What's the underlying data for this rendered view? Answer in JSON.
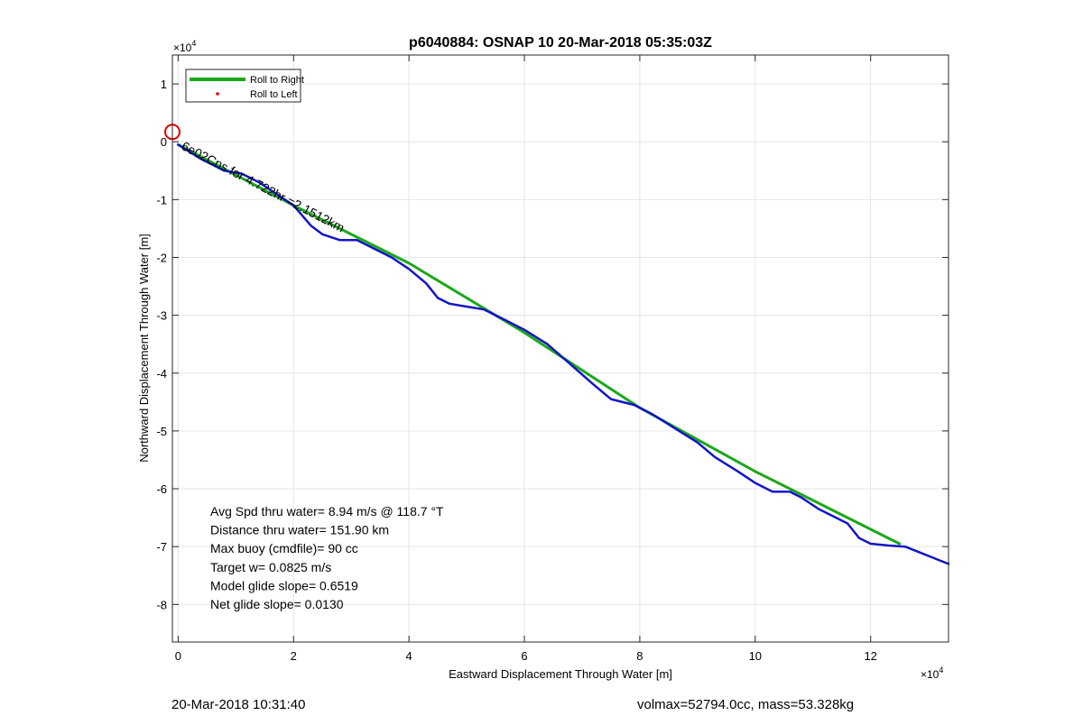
{
  "chart_data": {
    "type": "line",
    "title": "p6040884: OSNAP 10 20-Mar-2018 05:35:03Z",
    "xlabel": "Eastward Displacement Through Water [m]",
    "ylabel": "Northward Displacement Through Water [m]",
    "x_exponent": "×10",
    "y_exponent": "×10",
    "exponent_power": "4",
    "xlim": [
      -0.1,
      13.35
    ],
    "ylim": [
      -8.65,
      1.5
    ],
    "x_ticks": [
      0,
      2,
      4,
      6,
      8,
      10,
      12
    ],
    "x_tick_labels": [
      "0",
      "2",
      "4",
      "6",
      "8",
      "10",
      "12"
    ],
    "y_ticks": [
      1,
      0,
      -1,
      -2,
      -3,
      -4,
      -5,
      -6,
      -7,
      -8
    ],
    "y_tick_labels": [
      "1",
      "0",
      "-1",
      "-2",
      "-3",
      "-4",
      "-5",
      "-6",
      "-7",
      "-8"
    ],
    "grid": true,
    "legend_position": "top-left",
    "legend": [
      {
        "name": "Roll to Right",
        "style": "line",
        "color": "#1aa81a"
      },
      {
        "name": "Roll to Left",
        "style": "dot",
        "color": "#e00000"
      }
    ],
    "series": [
      {
        "name": "Roll to Right",
        "color": "#1aa81a",
        "x": [
          0.0,
          2.0,
          4.0,
          6.0,
          8.0,
          10.0,
          12.5
        ],
        "y": [
          -0.05,
          -1.1,
          -2.1,
          -3.3,
          -4.6,
          -5.7,
          -6.95
        ]
      },
      {
        "name": "",
        "color": "#1414c8",
        "x": [
          0.0,
          0.4,
          0.8,
          1.1,
          1.4,
          2.0,
          2.3,
          2.5,
          2.8,
          3.1,
          3.4,
          3.7,
          4.0,
          4.3,
          4.5,
          4.7,
          5.0,
          5.3,
          5.6,
          6.0,
          6.4,
          6.8,
          7.2,
          7.5,
          7.9,
          8.2,
          8.6,
          9.0,
          9.3,
          9.7,
          10.0,
          10.3,
          10.6,
          10.8,
          11.1,
          11.3,
          11.6,
          11.8,
          12.0,
          12.3,
          12.6,
          12.8,
          13.35
        ],
        "y": [
          -0.05,
          -0.3,
          -0.5,
          -0.55,
          -0.7,
          -1.1,
          -1.45,
          -1.6,
          -1.7,
          -1.7,
          -1.85,
          -2.0,
          -2.2,
          -2.45,
          -2.7,
          -2.8,
          -2.85,
          -2.9,
          -3.05,
          -3.25,
          -3.5,
          -3.85,
          -4.2,
          -4.45,
          -4.55,
          -4.7,
          -4.95,
          -5.2,
          -5.45,
          -5.7,
          -5.9,
          -6.05,
          -6.05,
          -6.15,
          -6.35,
          -6.45,
          -6.6,
          -6.85,
          -6.95,
          -6.98,
          -7.0,
          -7.08,
          -7.3
        ]
      }
    ],
    "rotated_text": "6e02Cns for 4.722hr =2.1512km",
    "start_marker": {
      "x": -0.1,
      "y": 0.17,
      "color": "#e00000"
    },
    "annotations": [
      "Avg Spd thru water=  8.94 m/s @ 118.7 °T",
      "Distance thru water= 151.90 km",
      "Max buoy (cmdfile)= 90 cc",
      "Target w= 0.0825 m/s",
      "Model glide slope= 0.6519",
      "Net glide slope= 0.0130"
    ]
  },
  "footer": {
    "left": "20-Mar-2018 10:31:40",
    "right": "volmax=52794.0cc, mass=53.328kg"
  }
}
